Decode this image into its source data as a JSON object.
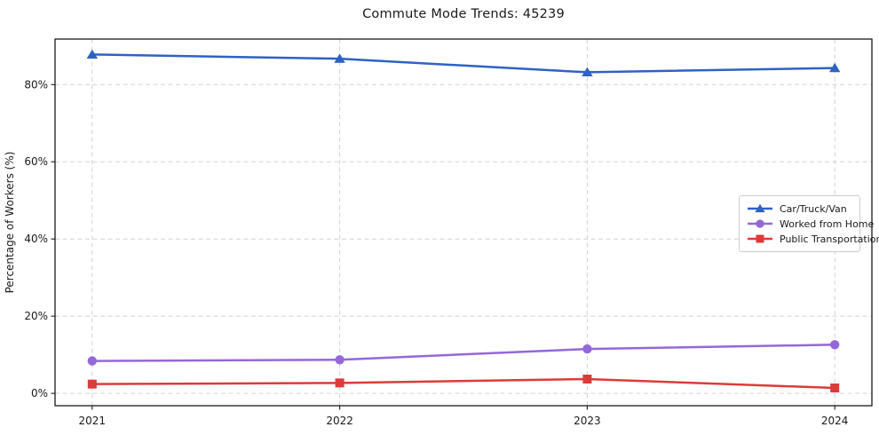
{
  "chart_data": {
    "type": "line",
    "title": "Commute Mode Trends: 45239",
    "xlabel": "",
    "ylabel": "Percentage of Workers (%)",
    "x": [
      2021,
      2022,
      2023,
      2024
    ],
    "x_tick_labels": [
      "2021",
      "2022",
      "2023",
      "2024"
    ],
    "series": [
      {
        "name": "Car/Truck/Van",
        "marker": "triangle-up",
        "color": "#2e62c3",
        "values": [
          87.8,
          86.7,
          83.2,
          84.3
        ]
      },
      {
        "name": "Worked from Home",
        "marker": "circle",
        "color": "#9468d8",
        "values": [
          8.4,
          8.7,
          11.5,
          12.6
        ]
      },
      {
        "name": "Public Transportation",
        "marker": "square",
        "color": "#dc3b3a",
        "values": [
          2.4,
          2.7,
          3.7,
          1.4
        ]
      }
    ],
    "yticks": {
      "values": [
        0,
        20,
        40,
        60,
        80
      ],
      "labels": [
        "0%",
        "20%",
        "40%",
        "60%",
        "80%"
      ]
    },
    "xlim": [
      2020.85,
      2024.15
    ],
    "ylim": [
      -3.2,
      91.8
    ],
    "grid": "both-dashed",
    "legend_position": "center-right",
    "colors": {
      "axis": "#1a1a1a",
      "grid": "#d2d2d2",
      "text": "#1a1a1a",
      "background": "#ffffff"
    }
  }
}
